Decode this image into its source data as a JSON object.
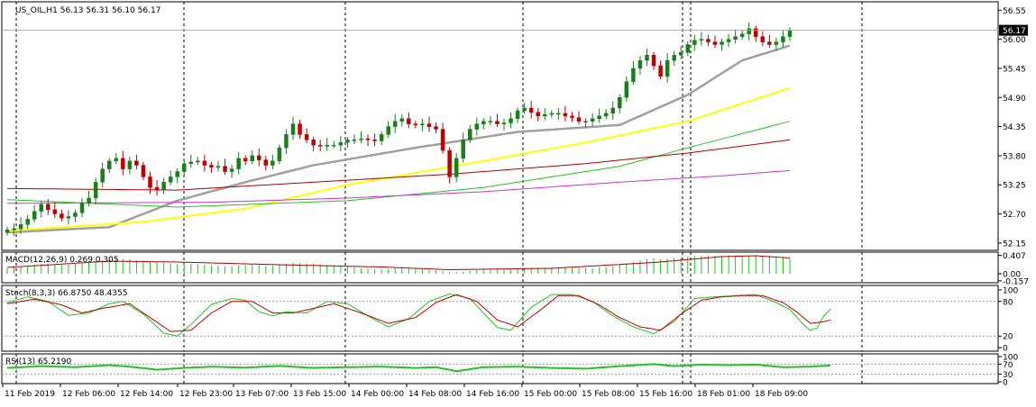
{
  "colors": {
    "background": "#ffffff",
    "frame": "#000000",
    "grid": "#000000",
    "candle": "#1a7f1a",
    "candle_bear": "#c00000",
    "ma_gray": "#a0a0a0",
    "ma_yellow": "#ffff00",
    "ma_green": "#22c422",
    "ma_red": "#b00000",
    "ma_magenta": "#cc33cc",
    "macd_hist": "#22c422",
    "macd_signal": "#b00000",
    "stoch_main": "#22c422",
    "stoch_signal": "#c00000",
    "rsi": "#22c422",
    "price_line": "#9fb39f"
  },
  "chart_data": [
    {
      "type": "candlestick",
      "title": "US_OIL,H1  56.13 56.31 56.10 56.17",
      "symbol": "US_OIL",
      "timeframe": "H1",
      "ohlc_header": {
        "open": 56.13,
        "high": 56.31,
        "low": 56.1,
        "close": 56.17
      },
      "current_price": "56.17",
      "y_ticks": [
        "56.55",
        "56.00",
        "55.45",
        "54.90",
        "54.35",
        "53.80",
        "53.25",
        "52.70",
        "52.15"
      ],
      "ylim": [
        52.08,
        56.64
      ],
      "x_ticks": [
        "11 Feb 2019",
        "12 Feb 06:00",
        "12 Feb 14:00",
        "12 Feb 23:00",
        "13 Feb 07:00",
        "13 Feb 15:00",
        "14 Feb 00:00",
        "14 Feb 08:00",
        "14 Feb 16:00",
        "15 Feb 00:00",
        "15 Feb 08:00",
        "15 Feb 16:00",
        "18 Feb 01:00",
        "18 Feb 09:00"
      ],
      "day_separators": [
        12,
        7,
        8.5,
        8.5,
        8.5,
        3,
        8.5
      ],
      "close": [
        52.4,
        52.42,
        52.5,
        52.6,
        52.75,
        52.88,
        52.78,
        52.7,
        52.62,
        52.65,
        52.72,
        52.9,
        53.0,
        53.3,
        53.55,
        53.7,
        53.75,
        53.55,
        53.7,
        53.62,
        53.4,
        53.2,
        53.15,
        53.3,
        53.4,
        53.5,
        53.65,
        53.68,
        53.7,
        53.62,
        53.58,
        53.6,
        53.5,
        53.55,
        53.75,
        53.7,
        53.8,
        53.72,
        53.62,
        53.7,
        53.95,
        54.2,
        54.4,
        54.2,
        54.1,
        54.0,
        53.98,
        54.0,
        54.0,
        54.05,
        54.1,
        54.1,
        54.12,
        54.1,
        54.08,
        54.2,
        54.35,
        54.45,
        54.5,
        54.4,
        54.38,
        54.4,
        54.35,
        54.3,
        53.9,
        53.4,
        53.75,
        54.1,
        54.3,
        54.4,
        54.45,
        54.45,
        54.4,
        54.42,
        54.5,
        54.65,
        54.7,
        54.62,
        54.55,
        54.58,
        54.6,
        54.6,
        54.55,
        54.52,
        54.45,
        54.45,
        54.5,
        54.55,
        54.6,
        54.7,
        54.9,
        55.2,
        55.45,
        55.6,
        55.7,
        55.5,
        55.3,
        55.6,
        55.7,
        55.75,
        55.9,
        55.98,
        56.0,
        55.95,
        55.9,
        55.95,
        56.0,
        56.05,
        56.1,
        56.2,
        56.05,
        55.95,
        55.9,
        55.95,
        56.05,
        56.17
      ],
      "overlays": [
        {
          "color": "ma_gray",
          "values": [
            [
              0,
              52.35
            ],
            [
              15,
              52.45
            ],
            [
              25,
              52.95
            ],
            [
              35,
              53.3
            ],
            [
              45,
              53.62
            ],
            [
              60,
              53.95
            ],
            [
              75,
              54.25
            ],
            [
              90,
              54.38
            ],
            [
              100,
              54.95
            ],
            [
              108,
              55.6
            ],
            [
              115,
              55.88
            ]
          ]
        },
        {
          "color": "ma_yellow",
          "values": [
            [
              0,
              52.38
            ],
            [
              20,
              52.55
            ],
            [
              35,
              52.8
            ],
            [
              50,
              53.25
            ],
            [
              70,
              53.7
            ],
            [
              85,
              54.05
            ],
            [
              100,
              54.45
            ],
            [
              115,
              55.08
            ]
          ]
        },
        {
          "color": "ma_green",
          "values": [
            [
              0,
              52.97
            ],
            [
              25,
              52.83
            ],
            [
              50,
              52.95
            ],
            [
              70,
              53.2
            ],
            [
              90,
              53.6
            ],
            [
              100,
              53.95
            ],
            [
              115,
              54.45
            ]
          ]
        },
        {
          "color": "ma_red",
          "values": [
            [
              0,
              53.18
            ],
            [
              25,
              53.15
            ],
            [
              45,
              53.3
            ],
            [
              65,
              53.45
            ],
            [
              85,
              53.65
            ],
            [
              100,
              53.85
            ],
            [
              115,
              54.1
            ]
          ]
        },
        {
          "color": "ma_magenta",
          "values": [
            [
              0,
              52.9
            ],
            [
              30,
              52.92
            ],
            [
              50,
              53.0
            ],
            [
              70,
              53.12
            ],
            [
              90,
              53.3
            ],
            [
              105,
              53.42
            ],
            [
              115,
              53.52
            ]
          ]
        }
      ]
    },
    {
      "type": "bar",
      "title": "MACD(12,26,9) 0.269 0.305",
      "y_ticks": [
        "0.407",
        "0.00",
        "-0.157"
      ],
      "ylim": [
        -0.16,
        0.42
      ],
      "histogram": [
        0.12,
        0.14,
        0.16,
        0.18,
        0.2,
        0.22,
        0.22,
        0.21,
        0.2,
        0.2,
        0.21,
        0.23,
        0.25,
        0.28,
        0.3,
        0.32,
        0.33,
        0.33,
        0.32,
        0.3,
        0.29,
        0.27,
        0.25,
        0.24,
        0.23,
        0.22,
        0.22,
        0.22,
        0.21,
        0.2,
        0.19,
        0.18,
        0.17,
        0.17,
        0.18,
        0.19,
        0.2,
        0.19,
        0.18,
        0.18,
        0.2,
        0.22,
        0.24,
        0.24,
        0.23,
        0.22,
        0.21,
        0.2,
        0.19,
        0.18,
        0.16,
        0.14,
        0.12,
        0.11,
        0.1,
        0.1,
        0.11,
        0.12,
        0.12,
        0.12,
        0.11,
        0.1,
        0.09,
        0.08,
        0.06,
        0.04,
        0.04,
        0.05,
        0.06,
        0.08,
        0.09,
        0.1,
        0.1,
        0.11,
        0.11,
        0.12,
        0.13,
        0.13,
        0.13,
        0.13,
        0.14,
        0.14,
        0.14,
        0.14,
        0.13,
        0.13,
        0.13,
        0.14,
        0.15,
        0.17,
        0.2,
        0.23,
        0.27,
        0.3,
        0.33,
        0.34,
        0.33,
        0.34,
        0.35,
        0.36,
        0.38,
        0.39,
        0.4,
        0.4,
        0.4,
        0.4,
        0.4,
        0.4,
        0.4,
        0.4,
        0.39,
        0.38,
        0.37,
        0.36,
        0.35,
        0.33
      ],
      "signal": [
        [
          0,
          0.14
        ],
        [
          15,
          0.28
        ],
        [
          25,
          0.26
        ],
        [
          40,
          0.2
        ],
        [
          55,
          0.15
        ],
        [
          65,
          0.09
        ],
        [
          80,
          0.12
        ],
        [
          95,
          0.25
        ],
        [
          105,
          0.38
        ],
        [
          110,
          0.4
        ],
        [
          115,
          0.35
        ]
      ]
    },
    {
      "type": "line",
      "title": "Stoch(8,3,3) 66.8750 48.4355",
      "y_ticks": [
        "100",
        "80",
        "20",
        "0"
      ],
      "ylim": [
        -3,
        103
      ],
      "levels": [
        80,
        20
      ],
      "main": [
        [
          0,
          78
        ],
        [
          3,
          88
        ],
        [
          6,
          80
        ],
        [
          9,
          56
        ],
        [
          12,
          60
        ],
        [
          15,
          76
        ],
        [
          17,
          80
        ],
        [
          20,
          58
        ],
        [
          23,
          25
        ],
        [
          25,
          20
        ],
        [
          27,
          40
        ],
        [
          30,
          75
        ],
        [
          33,
          85
        ],
        [
          35,
          82
        ],
        [
          37,
          62
        ],
        [
          39,
          55
        ],
        [
          41,
          62
        ],
        [
          44,
          60
        ],
        [
          47,
          80
        ],
        [
          50,
          76
        ],
        [
          53,
          55
        ],
        [
          56,
          36
        ],
        [
          59,
          50
        ],
        [
          62,
          80
        ],
        [
          65,
          93
        ],
        [
          68,
          85
        ],
        [
          70,
          60
        ],
        [
          72,
          35
        ],
        [
          74,
          30
        ],
        [
          77,
          70
        ],
        [
          80,
          92
        ],
        [
          83,
          92
        ],
        [
          86,
          80
        ],
        [
          89,
          55
        ],
        [
          92,
          36
        ],
        [
          95,
          24
        ],
        [
          98,
          45
        ],
        [
          101,
          85
        ],
        [
          104,
          88
        ],
        [
          107,
          90
        ],
        [
          110,
          92
        ],
        [
          113,
          78
        ],
        [
          115,
          66
        ],
        [
          117,
          40
        ],
        [
          118,
          30
        ],
        [
          119,
          34
        ],
        [
          120,
          55
        ],
        [
          121,
          67
        ]
      ],
      "signal": [
        [
          0,
          76
        ],
        [
          4,
          84
        ],
        [
          8,
          74
        ],
        [
          11,
          60
        ],
        [
          14,
          68
        ],
        [
          18,
          76
        ],
        [
          21,
          52
        ],
        [
          24,
          28
        ],
        [
          27,
          30
        ],
        [
          30,
          60
        ],
        [
          33,
          80
        ],
        [
          36,
          80
        ],
        [
          39,
          60
        ],
        [
          42,
          60
        ],
        [
          45,
          68
        ],
        [
          48,
          76
        ],
        [
          52,
          60
        ],
        [
          56,
          42
        ],
        [
          60,
          52
        ],
        [
          63,
          78
        ],
        [
          66,
          92
        ],
        [
          69,
          80
        ],
        [
          72,
          48
        ],
        [
          75,
          36
        ],
        [
          78,
          62
        ],
        [
          81,
          90
        ],
        [
          84,
          90
        ],
        [
          87,
          74
        ],
        [
          90,
          52
        ],
        [
          93,
          36
        ],
        [
          96,
          30
        ],
        [
          99,
          58
        ],
        [
          102,
          82
        ],
        [
          105,
          88
        ],
        [
          108,
          90
        ],
        [
          111,
          90
        ],
        [
          114,
          78
        ],
        [
          116,
          62
        ],
        [
          118,
          42
        ],
        [
          120,
          45
        ],
        [
          121,
          48
        ]
      ]
    },
    {
      "type": "line",
      "title": "RSI(13) 65.2190",
      "y_ticks": [
        "100",
        "70",
        "30",
        "0"
      ],
      "ylim": [
        0,
        100
      ],
      "levels": [
        70,
        30
      ],
      "values": [
        [
          0,
          55
        ],
        [
          5,
          62
        ],
        [
          10,
          58
        ],
        [
          15,
          66
        ],
        [
          18,
          60
        ],
        [
          22,
          48
        ],
        [
          26,
          55
        ],
        [
          30,
          60
        ],
        [
          35,
          56
        ],
        [
          40,
          63
        ],
        [
          45,
          55
        ],
        [
          50,
          58
        ],
        [
          55,
          60
        ],
        [
          60,
          55
        ],
        [
          63,
          58
        ],
        [
          66,
          42
        ],
        [
          70,
          58
        ],
        [
          75,
          60
        ],
        [
          80,
          55
        ],
        [
          85,
          52
        ],
        [
          90,
          62
        ],
        [
          95,
          70
        ],
        [
          98,
          62
        ],
        [
          102,
          68
        ],
        [
          106,
          66
        ],
        [
          110,
          68
        ],
        [
          114,
          58
        ],
        [
          118,
          60
        ],
        [
          121,
          65
        ]
      ]
    }
  ]
}
